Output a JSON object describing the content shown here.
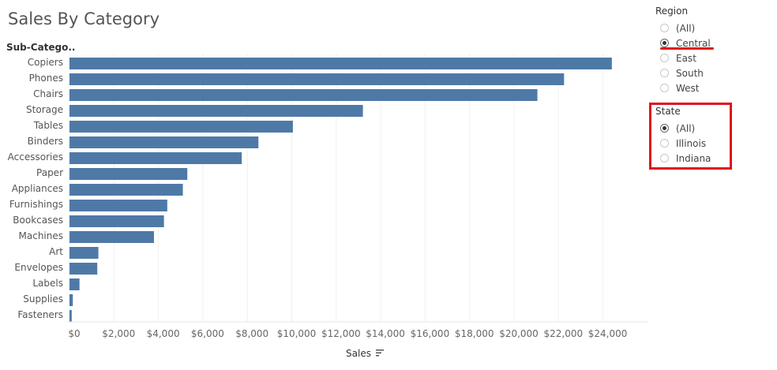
{
  "title": "Sales By Category",
  "chart_data": {
    "type": "bar",
    "orientation": "horizontal",
    "title": "Sales By Category",
    "ylabel": "Sub-Catego..",
    "xlabel": "Sales",
    "categories": [
      "Copiers",
      "Phones",
      "Chairs",
      "Storage",
      "Tables",
      "Binders",
      "Accessories",
      "Paper",
      "Appliances",
      "Furnishings",
      "Bookcases",
      "Machines",
      "Art",
      "Envelopes",
      "Labels",
      "Supplies",
      "Fasteners"
    ],
    "values": [
      24400,
      22250,
      21050,
      13200,
      10050,
      8500,
      7750,
      5300,
      5100,
      4400,
      4250,
      3800,
      1300,
      1250,
      450,
      150,
      100
    ],
    "xlim": [
      0,
      25000
    ],
    "xticks": [
      0,
      2000,
      4000,
      6000,
      8000,
      10000,
      12000,
      14000,
      16000,
      18000,
      20000,
      22000,
      24000
    ],
    "xtick_labels": [
      "$0",
      "$2,000",
      "$4,000",
      "$6,000",
      "$8,000",
      "$10,000",
      "$12,000",
      "$14,000",
      "$16,000",
      "$18,000",
      "$20,000",
      "$22,000",
      "$24,000"
    ],
    "grid": true,
    "bar_color": "#4e79a7",
    "sort_indicator": "descending"
  },
  "filters": {
    "region": {
      "title": "Region",
      "options": [
        "(All)",
        "Central",
        "East",
        "South",
        "West"
      ],
      "selected": "Central"
    },
    "state": {
      "title": "State",
      "options": [
        "(All)",
        "Illinois",
        "Indiana"
      ],
      "selected": "(All)"
    }
  },
  "annotations": {
    "highlight_color": "#e0101e"
  }
}
